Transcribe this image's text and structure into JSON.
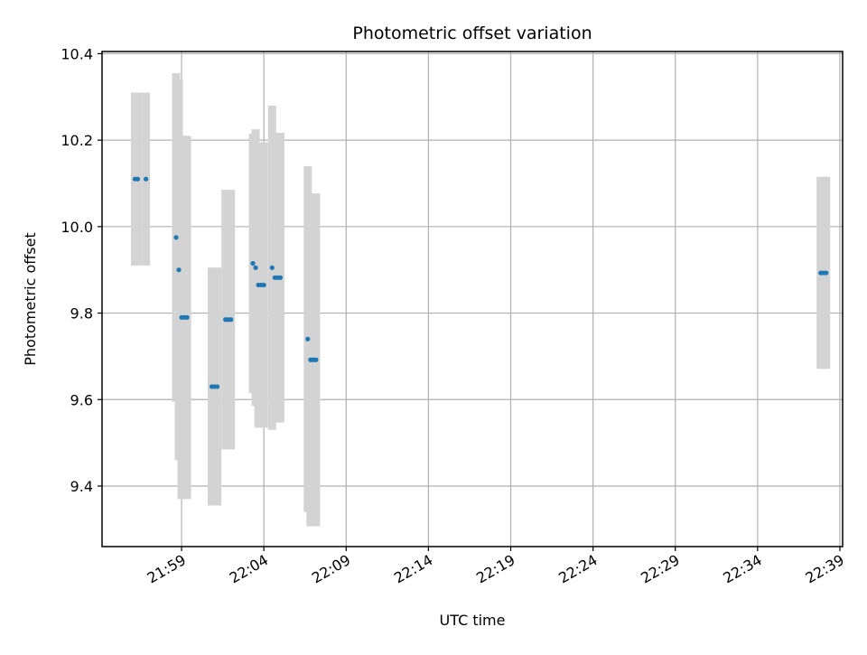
{
  "chart_data": {
    "type": "scatter",
    "title": "Photometric offset variation",
    "xlabel": "UTC time",
    "ylabel": "Photometric offset",
    "grid": true,
    "legend": "none",
    "xlim": [
      "21:54:10",
      "22:39:10"
    ],
    "ylim": [
      9.26,
      10.405
    ],
    "xticks": [
      "21:59",
      "22:04",
      "22:09",
      "22:14",
      "22:19",
      "22:24",
      "22:29",
      "22:34",
      "22:39"
    ],
    "yticks": [
      "9.4",
      "9.6",
      "9.8",
      "10.0",
      "10.2",
      "10.4"
    ],
    "colors": {
      "points": "#1f77b4",
      "error_bars": "#d3d3d3",
      "grid": "#b0b0b0"
    },
    "points": [
      {
        "x": "21:56:10",
        "y": 10.11,
        "err": 0.2
      },
      {
        "x": "21:56:20",
        "y": 10.11,
        "err": 0.2
      },
      {
        "x": "21:56:50",
        "y": 10.11,
        "err": 0.2
      },
      {
        "x": "21:58:40",
        "y": 9.975,
        "err": 0.38
      },
      {
        "x": "21:58:50",
        "y": 9.9,
        "err": 0.44
      },
      {
        "x": "21:59:00",
        "y": 9.79,
        "err": 0.42
      },
      {
        "x": "21:59:10",
        "y": 9.79,
        "err": 0.42
      },
      {
        "x": "21:59:20",
        "y": 9.79,
        "err": 0.42
      },
      {
        "x": "22:00:50",
        "y": 9.63,
        "err": 0.275
      },
      {
        "x": "22:01:00",
        "y": 9.63,
        "err": 0.275
      },
      {
        "x": "22:01:10",
        "y": 9.63,
        "err": 0.275
      },
      {
        "x": "22:01:40",
        "y": 9.785,
        "err": 0.3
      },
      {
        "x": "22:01:50",
        "y": 9.785,
        "err": 0.3
      },
      {
        "x": "22:02:00",
        "y": 9.785,
        "err": 0.3
      },
      {
        "x": "22:03:20",
        "y": 9.915,
        "err": 0.3
      },
      {
        "x": "22:03:30",
        "y": 9.905,
        "err": 0.32
      },
      {
        "x": "22:03:40",
        "y": 9.865,
        "err": 0.33
      },
      {
        "x": "22:03:50",
        "y": 9.865,
        "err": 0.33
      },
      {
        "x": "22:04:00",
        "y": 9.865,
        "err": 0.33
      },
      {
        "x": "22:04:30",
        "y": 9.905,
        "err": 0.375
      },
      {
        "x": "22:04:40",
        "y": 9.882,
        "err": 0.335
      },
      {
        "x": "22:04:50",
        "y": 9.882,
        "err": 0.335
      },
      {
        "x": "22:05:00",
        "y": 9.882,
        "err": 0.335
      },
      {
        "x": "22:06:40",
        "y": 9.74,
        "err": 0.4
      },
      {
        "x": "22:06:50",
        "y": 9.692,
        "err": 0.385
      },
      {
        "x": "22:07:00",
        "y": 9.692,
        "err": 0.385
      },
      {
        "x": "22:07:10",
        "y": 9.692,
        "err": 0.385
      },
      {
        "x": "22:37:50",
        "y": 9.893,
        "err": 0.222
      },
      {
        "x": "22:38:00",
        "y": 9.893,
        "err": 0.222
      },
      {
        "x": "22:38:10",
        "y": 9.893,
        "err": 0.222
      }
    ]
  }
}
